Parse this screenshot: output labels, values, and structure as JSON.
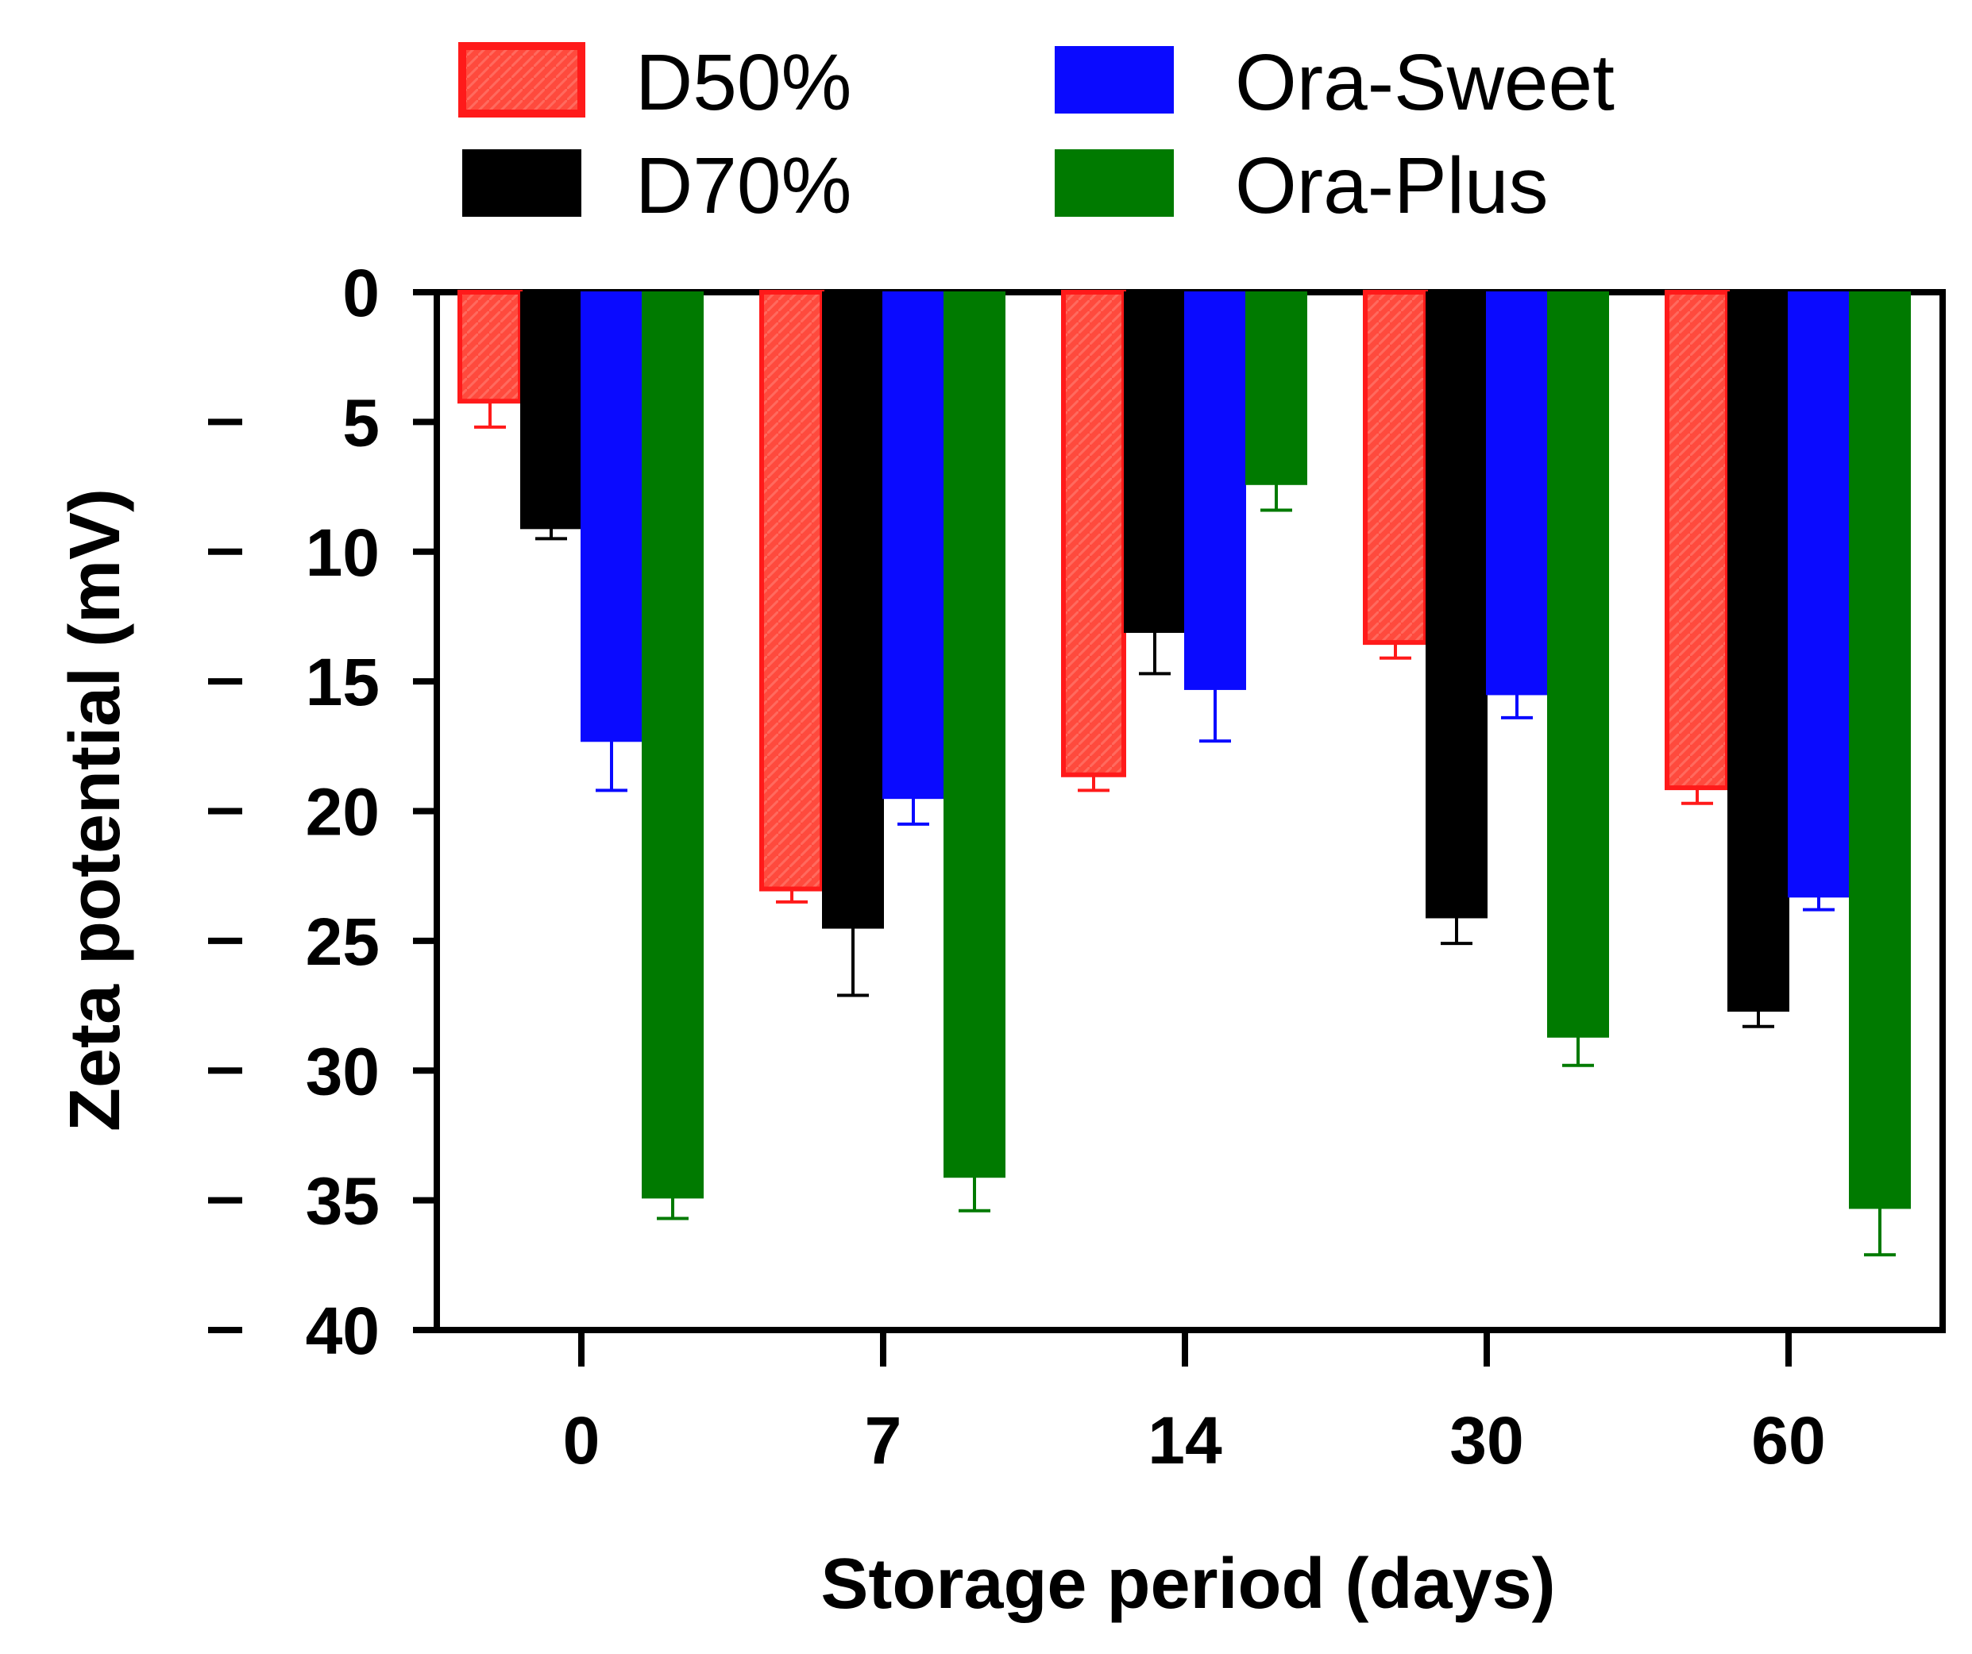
{
  "chart_data": {
    "type": "bar",
    "xlabel": "Storage period (days)",
    "ylabel": "Zeta potential (mV)",
    "categories": [
      "0",
      "7",
      "14",
      "30",
      "60"
    ],
    "y_tick_labels": [
      "0",
      "5",
      "10",
      "15",
      "20",
      "25",
      "30",
      "35",
      "40"
    ],
    "y_ticks_show_minus": true,
    "ylim": [
      -40,
      0
    ],
    "legend_placement": "top",
    "series": [
      {
        "name": "D50%",
        "color": "#ff4a3d",
        "border": "#ff1a1a",
        "hatched": true,
        "values": [
          -4.2,
          -23.0,
          -18.6,
          -13.5,
          -19.1
        ],
        "errors": [
          1.0,
          0.5,
          0.6,
          0.6,
          0.6
        ]
      },
      {
        "name": "D70%",
        "color": "#000000",
        "border": "#000000",
        "hatched": false,
        "values": [
          -9.1,
          -24.5,
          -13.1,
          -24.1,
          -27.7
        ],
        "errors": [
          0.4,
          2.6,
          1.6,
          1.0,
          0.6
        ]
      },
      {
        "name": "Ora-Sweet",
        "color": "#0a0aff",
        "border": "#0a0aff",
        "hatched": false,
        "values": [
          -17.3,
          -19.5,
          -15.3,
          -15.5,
          -23.3
        ],
        "errors": [
          1.9,
          1.0,
          2.0,
          0.9,
          0.5
        ]
      },
      {
        "name": "Ora-Plus",
        "color": "#007a00",
        "border": "#007a00",
        "hatched": false,
        "values": [
          -34.9,
          -34.1,
          -7.4,
          -28.7,
          -35.3
        ],
        "errors": [
          0.8,
          1.3,
          1.0,
          1.1,
          1.8
        ]
      }
    ]
  }
}
